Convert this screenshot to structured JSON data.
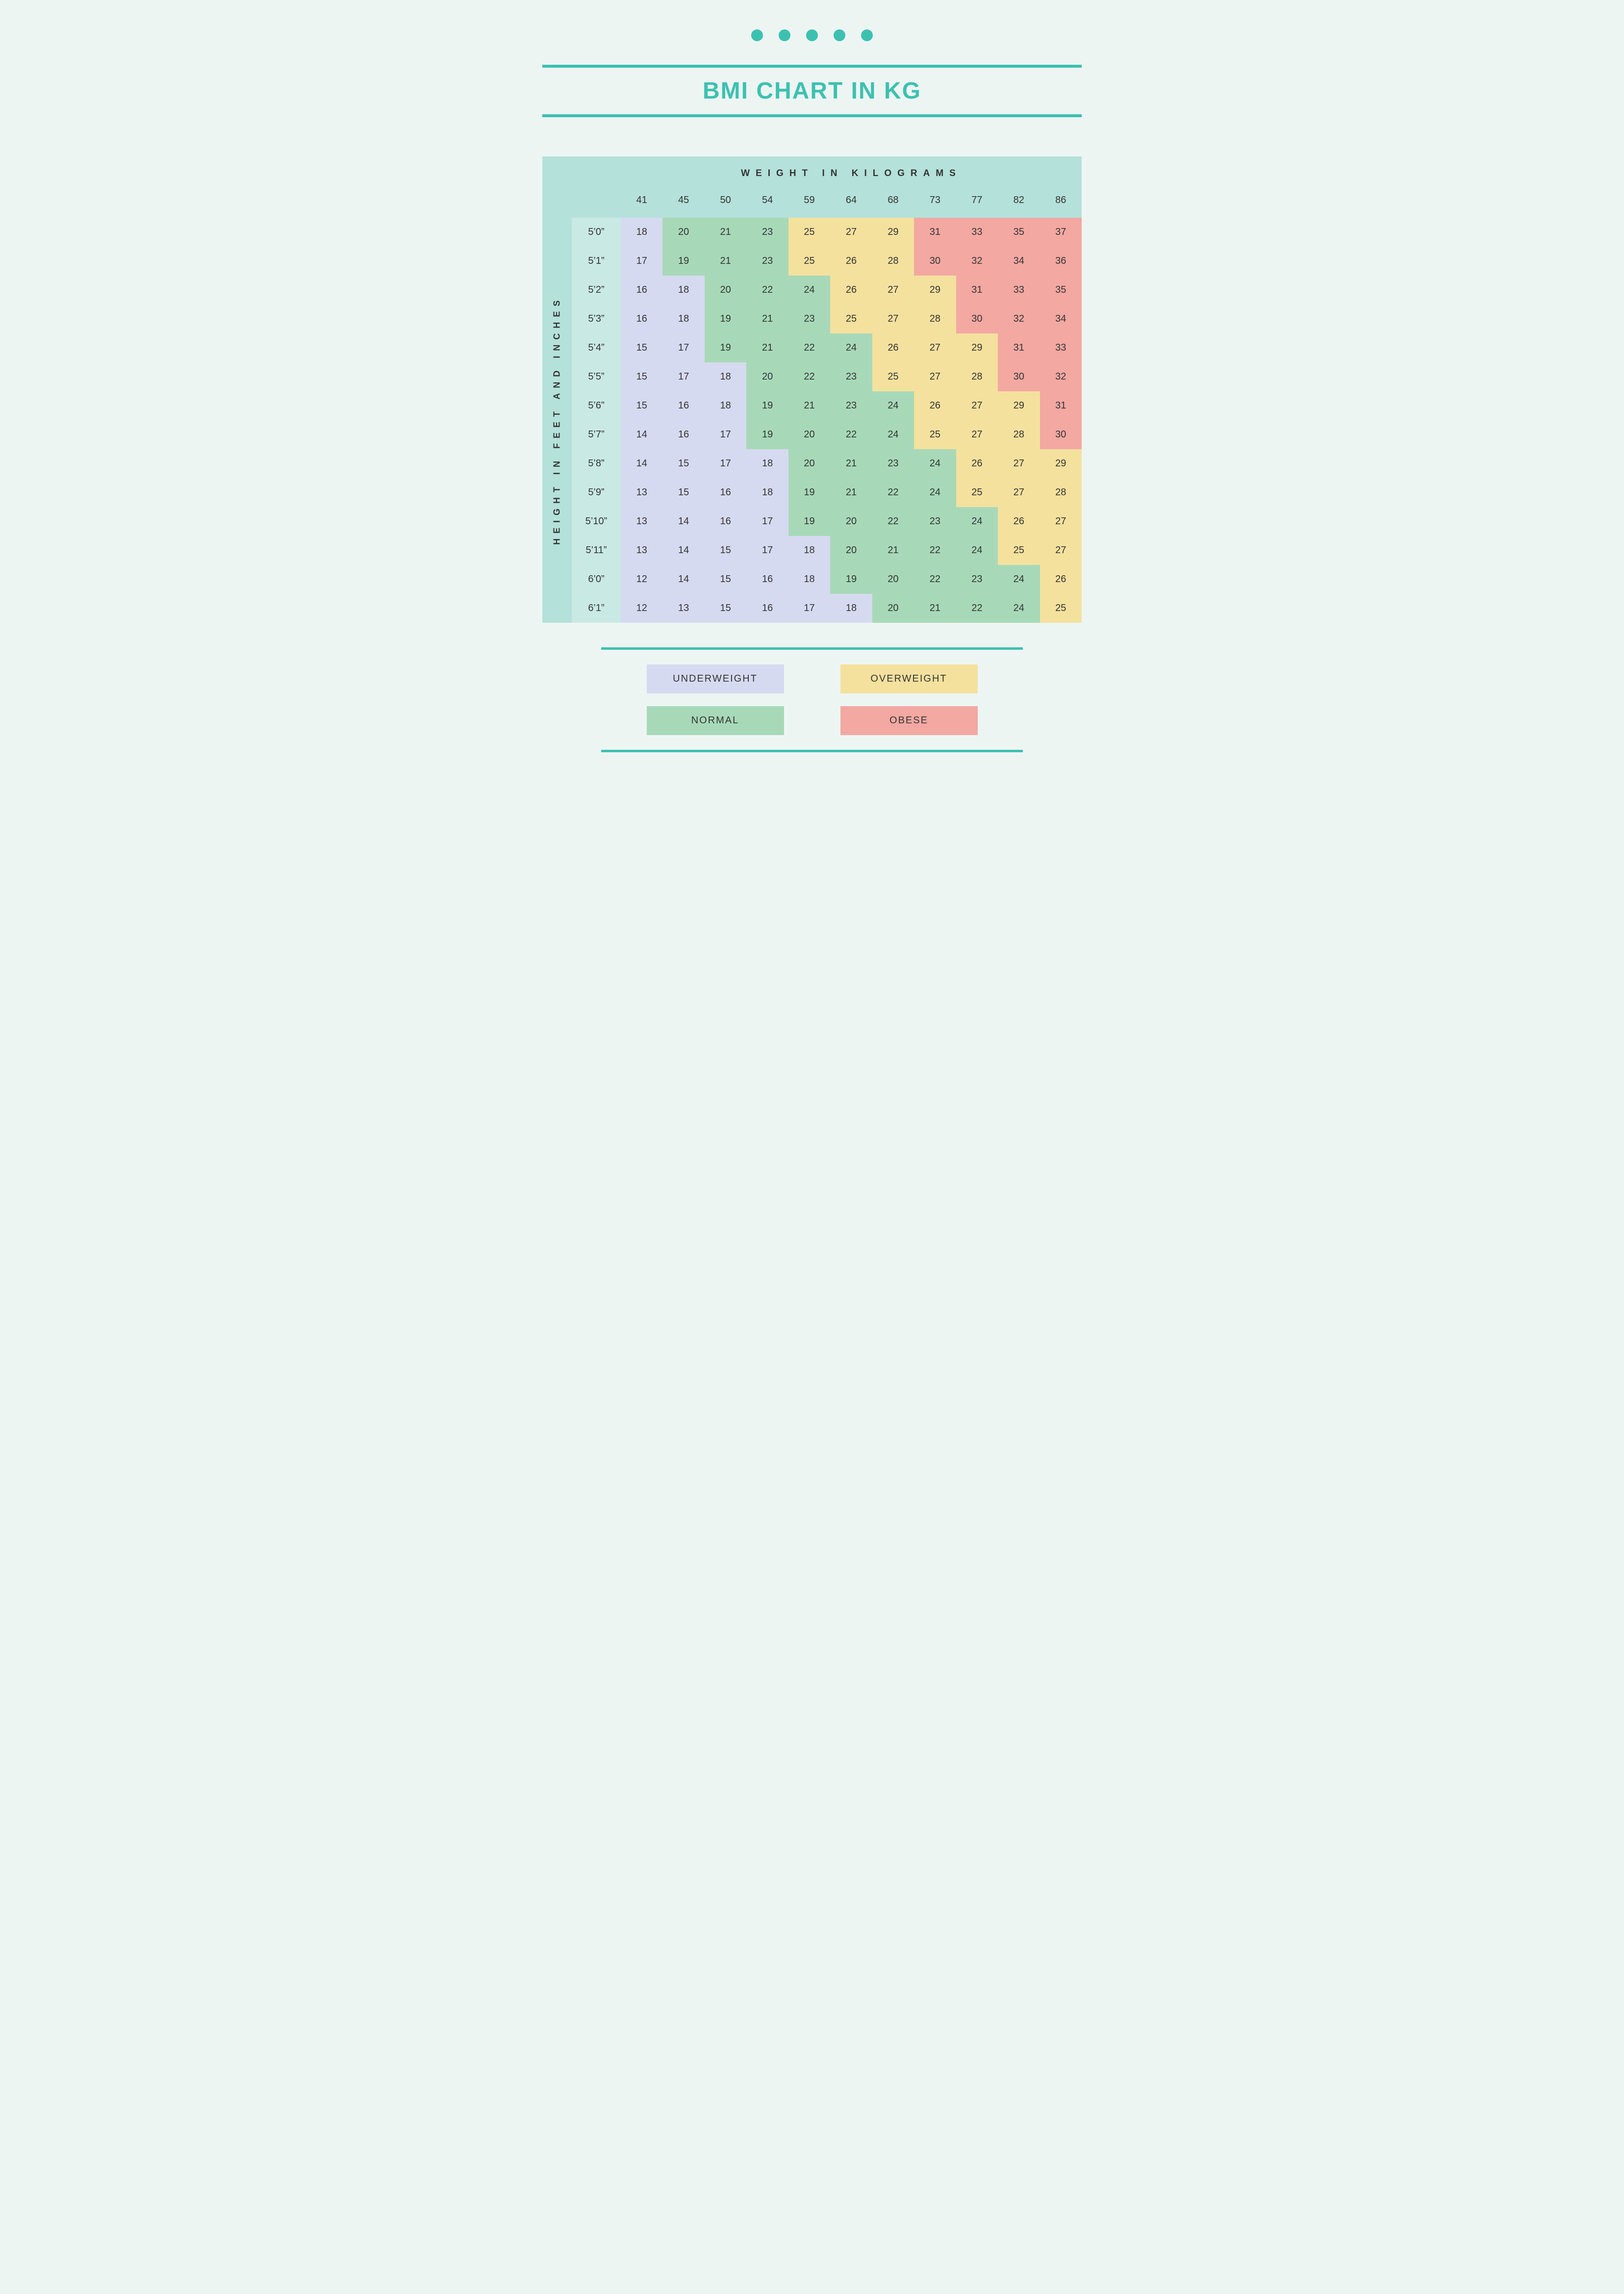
{
  "title": "BMI CHART IN KG",
  "colors": {
    "accent": "#3cc1b0",
    "page_bg": "#edf5f3",
    "header_bg": "#b4e1da",
    "height_col_bg": "#c9e9e4",
    "underweight": "#d6daf0",
    "normal": "#a7d9b8",
    "overweight": "#f4e19e",
    "obese": "#f3a8a2",
    "text": "#333333"
  },
  "axis_labels": {
    "weight": "WEIGHT IN KILOGRAMS",
    "height": "HEIGHT IN FEET AND INCHES"
  },
  "weights": [
    41,
    45,
    50,
    54,
    59,
    64,
    68,
    73,
    77,
    82,
    86
  ],
  "heights": [
    "5’0”",
    "5’1”",
    "5’2”",
    "5’3”",
    "5’4”",
    "5’5”",
    "5’6”",
    "5’7”",
    "5’8”",
    "5’9”",
    "5’10”",
    "5’11”",
    "6’0”",
    "6’1”"
  ],
  "cells": [
    [
      [
        18,
        "u"
      ],
      [
        20,
        "n"
      ],
      [
        21,
        "n"
      ],
      [
        23,
        "n"
      ],
      [
        25,
        "o"
      ],
      [
        27,
        "o"
      ],
      [
        29,
        "o"
      ],
      [
        31,
        "b"
      ],
      [
        33,
        "b"
      ],
      [
        35,
        "b"
      ],
      [
        37,
        "b"
      ]
    ],
    [
      [
        17,
        "u"
      ],
      [
        19,
        "n"
      ],
      [
        21,
        "n"
      ],
      [
        23,
        "n"
      ],
      [
        25,
        "o"
      ],
      [
        26,
        "o"
      ],
      [
        28,
        "o"
      ],
      [
        30,
        "b"
      ],
      [
        32,
        "b"
      ],
      [
        34,
        "b"
      ],
      [
        36,
        "b"
      ]
    ],
    [
      [
        16,
        "u"
      ],
      [
        18,
        "u"
      ],
      [
        20,
        "n"
      ],
      [
        22,
        "n"
      ],
      [
        24,
        "n"
      ],
      [
        26,
        "o"
      ],
      [
        27,
        "o"
      ],
      [
        29,
        "o"
      ],
      [
        31,
        "b"
      ],
      [
        33,
        "b"
      ],
      [
        35,
        "b"
      ]
    ],
    [
      [
        16,
        "u"
      ],
      [
        18,
        "u"
      ],
      [
        19,
        "n"
      ],
      [
        21,
        "n"
      ],
      [
        23,
        "n"
      ],
      [
        25,
        "o"
      ],
      [
        27,
        "o"
      ],
      [
        28,
        "o"
      ],
      [
        30,
        "b"
      ],
      [
        32,
        "b"
      ],
      [
        34,
        "b"
      ]
    ],
    [
      [
        15,
        "u"
      ],
      [
        17,
        "u"
      ],
      [
        19,
        "n"
      ],
      [
        21,
        "n"
      ],
      [
        22,
        "n"
      ],
      [
        24,
        "n"
      ],
      [
        26,
        "o"
      ],
      [
        27,
        "o"
      ],
      [
        29,
        "o"
      ],
      [
        31,
        "b"
      ],
      [
        33,
        "b"
      ]
    ],
    [
      [
        15,
        "u"
      ],
      [
        17,
        "u"
      ],
      [
        18,
        "u"
      ],
      [
        20,
        "n"
      ],
      [
        22,
        "n"
      ],
      [
        23,
        "n"
      ],
      [
        25,
        "o"
      ],
      [
        27,
        "o"
      ],
      [
        28,
        "o"
      ],
      [
        30,
        "b"
      ],
      [
        32,
        "b"
      ]
    ],
    [
      [
        15,
        "u"
      ],
      [
        16,
        "u"
      ],
      [
        18,
        "u"
      ],
      [
        19,
        "n"
      ],
      [
        21,
        "n"
      ],
      [
        23,
        "n"
      ],
      [
        24,
        "n"
      ],
      [
        26,
        "o"
      ],
      [
        27,
        "o"
      ],
      [
        29,
        "o"
      ],
      [
        31,
        "b"
      ]
    ],
    [
      [
        14,
        "u"
      ],
      [
        16,
        "u"
      ],
      [
        17,
        "u"
      ],
      [
        19,
        "n"
      ],
      [
        20,
        "n"
      ],
      [
        22,
        "n"
      ],
      [
        24,
        "n"
      ],
      [
        25,
        "o"
      ],
      [
        27,
        "o"
      ],
      [
        28,
        "o"
      ],
      [
        30,
        "b"
      ]
    ],
    [
      [
        14,
        "u"
      ],
      [
        15,
        "u"
      ],
      [
        17,
        "u"
      ],
      [
        18,
        "u"
      ],
      [
        20,
        "n"
      ],
      [
        21,
        "n"
      ],
      [
        23,
        "n"
      ],
      [
        24,
        "n"
      ],
      [
        26,
        "o"
      ],
      [
        27,
        "o"
      ],
      [
        29,
        "o"
      ]
    ],
    [
      [
        13,
        "u"
      ],
      [
        15,
        "u"
      ],
      [
        16,
        "u"
      ],
      [
        18,
        "u"
      ],
      [
        19,
        "n"
      ],
      [
        21,
        "n"
      ],
      [
        22,
        "n"
      ],
      [
        24,
        "n"
      ],
      [
        25,
        "o"
      ],
      [
        27,
        "o"
      ],
      [
        28,
        "o"
      ]
    ],
    [
      [
        13,
        "u"
      ],
      [
        14,
        "u"
      ],
      [
        16,
        "u"
      ],
      [
        17,
        "u"
      ],
      [
        19,
        "n"
      ],
      [
        20,
        "n"
      ],
      [
        22,
        "n"
      ],
      [
        23,
        "n"
      ],
      [
        24,
        "n"
      ],
      [
        26,
        "o"
      ],
      [
        27,
        "o"
      ]
    ],
    [
      [
        13,
        "u"
      ],
      [
        14,
        "u"
      ],
      [
        15,
        "u"
      ],
      [
        17,
        "u"
      ],
      [
        18,
        "u"
      ],
      [
        20,
        "n"
      ],
      [
        21,
        "n"
      ],
      [
        22,
        "n"
      ],
      [
        24,
        "n"
      ],
      [
        25,
        "o"
      ],
      [
        27,
        "o"
      ]
    ],
    [
      [
        12,
        "u"
      ],
      [
        14,
        "u"
      ],
      [
        15,
        "u"
      ],
      [
        16,
        "u"
      ],
      [
        18,
        "u"
      ],
      [
        19,
        "n"
      ],
      [
        20,
        "n"
      ],
      [
        22,
        "n"
      ],
      [
        23,
        "n"
      ],
      [
        24,
        "n"
      ],
      [
        26,
        "o"
      ]
    ],
    [
      [
        12,
        "u"
      ],
      [
        13,
        "u"
      ],
      [
        15,
        "u"
      ],
      [
        16,
        "u"
      ],
      [
        17,
        "u"
      ],
      [
        18,
        "u"
      ],
      [
        20,
        "n"
      ],
      [
        21,
        "n"
      ],
      [
        22,
        "n"
      ],
      [
        24,
        "n"
      ],
      [
        25,
        "o"
      ]
    ]
  ],
  "category_map": {
    "u": "underweight",
    "n": "normal",
    "o": "overweight",
    "b": "obese"
  },
  "legend": [
    {
      "label": "UNDERWEIGHT",
      "cat": "u"
    },
    {
      "label": "OVERWEIGHT",
      "cat": "o"
    },
    {
      "label": "NORMAL",
      "cat": "n"
    },
    {
      "label": "OBESE",
      "cat": "b"
    }
  ],
  "typography": {
    "title_fontsize": 48,
    "title_weight": 800,
    "axis_label_fontsize": 19,
    "axis_label_letter_spacing": 12,
    "cell_fontsize": 20,
    "legend_fontsize": 20
  },
  "decor": {
    "dot_count": 5
  }
}
